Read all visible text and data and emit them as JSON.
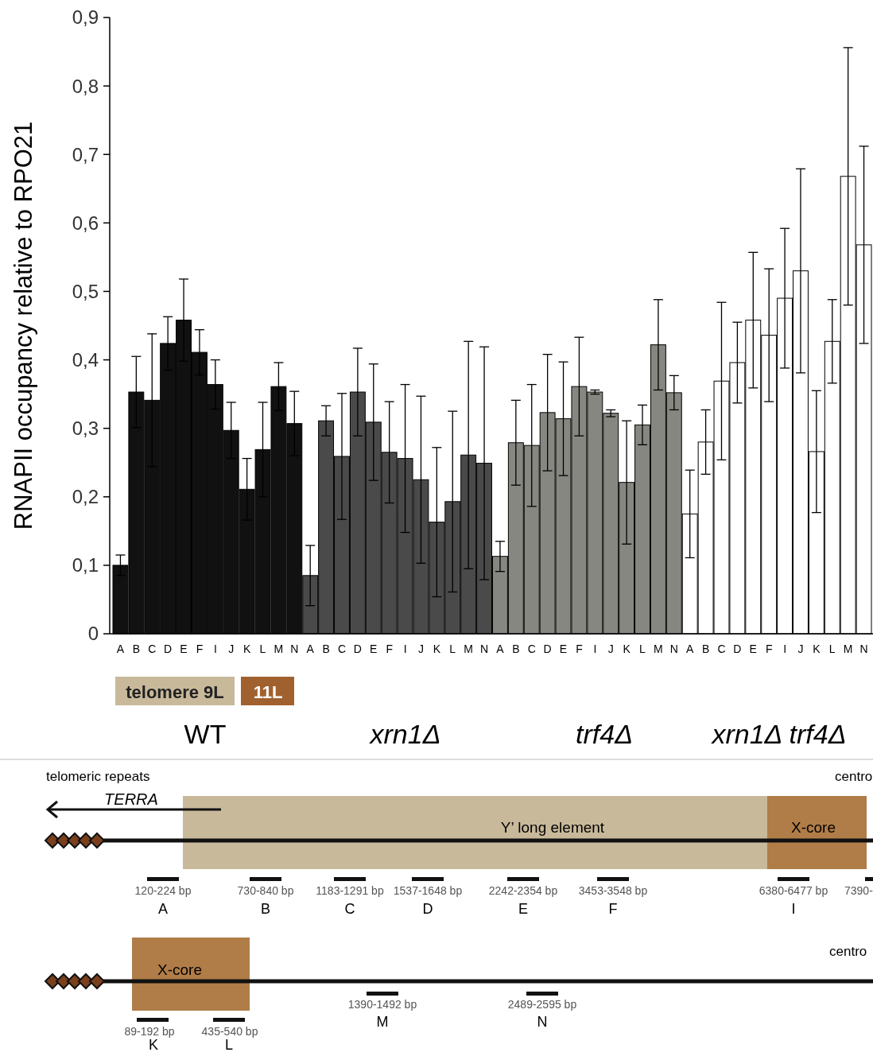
{
  "chart_data": {
    "type": "bar",
    "ylabel": "RNAPII occupancy relative to RPO21",
    "categories": [
      "A",
      "B",
      "C",
      "D",
      "E",
      "F",
      "I",
      "J",
      "K",
      "L",
      "M",
      "N",
      "A",
      "B",
      "C",
      "D",
      "E",
      "F",
      "I",
      "J",
      "K",
      "L",
      "M",
      "N",
      "A",
      "B",
      "C",
      "D",
      "E",
      "F",
      "I",
      "J",
      "K",
      "L",
      "M",
      "N",
      "A",
      "B",
      "C",
      "D",
      "E",
      "F",
      "I",
      "J",
      "K",
      "L",
      "M",
      "N"
    ],
    "values": [
      0.1,
      0.353,
      0.341,
      0.424,
      0.458,
      0.411,
      0.364,
      0.297,
      0.211,
      0.269,
      0.361,
      0.307,
      0.085,
      0.311,
      0.259,
      0.353,
      0.309,
      0.265,
      0.256,
      0.225,
      0.163,
      0.193,
      0.261,
      0.249,
      0.113,
      0.279,
      0.275,
      0.323,
      0.314,
      0.361,
      0.353,
      0.322,
      0.221,
      0.305,
      0.422,
      0.352,
      0.175,
      0.28,
      0.369,
      0.396,
      0.458,
      0.436,
      0.49,
      0.53,
      0.266,
      0.427,
      0.668,
      0.568
    ],
    "errors": [
      0.015,
      0.052,
      0.097,
      0.039,
      0.06,
      0.033,
      0.036,
      0.041,
      0.045,
      0.069,
      0.035,
      0.047,
      0.044,
      0.022,
      0.092,
      0.064,
      0.085,
      0.074,
      0.108,
      0.122,
      0.109,
      0.132,
      0.166,
      0.17,
      0.022,
      0.062,
      0.089,
      0.085,
      0.083,
      0.072,
      0.003,
      0.005,
      0.09,
      0.029,
      0.066,
      0.025,
      0.064,
      0.047,
      0.115,
      0.059,
      0.099,
      0.097,
      0.102,
      0.149,
      0.089,
      0.061,
      0.188,
      0.144
    ],
    "colors": [
      "#111111",
      "#111111",
      "#111111",
      "#111111",
      "#111111",
      "#111111",
      "#111111",
      "#111111",
      "#111111",
      "#111111",
      "#111111",
      "#111111",
      "#4a4a4a",
      "#4a4a4a",
      "#4a4a4a",
      "#4a4a4a",
      "#4a4a4a",
      "#4a4a4a",
      "#4a4a4a",
      "#4a4a4a",
      "#4a4a4a",
      "#4a4a4a",
      "#4a4a4a",
      "#4a4a4a",
      "#878782",
      "#878782",
      "#878782",
      "#878782",
      "#878782",
      "#878782",
      "#878782",
      "#878782",
      "#878782",
      "#878782",
      "#878782",
      "#878782",
      "#ffffff",
      "#ffffff",
      "#ffffff",
      "#ffffff",
      "#ffffff",
      "#ffffff",
      "#ffffff",
      "#ffffff",
      "#ffffff",
      "#ffffff",
      "#ffffff",
      "#ffffff"
    ],
    "ylim": [
      0,
      0.9
    ],
    "yticks": [
      0,
      {
        "value": 0.1,
        "label": "0,1"
      },
      {
        "value": 0.2,
        "label": "0,2"
      },
      {
        "value": 0.3,
        "label": "0,3"
      },
      {
        "value": 0.4,
        "label": "0,4"
      },
      {
        "value": 0.5,
        "label": "0,5"
      },
      {
        "value": 0.6,
        "label": "0,6"
      },
      {
        "value": 0.7,
        "label": "0,7"
      },
      {
        "value": 0.8,
        "label": "0,8"
      },
      {
        "value": 0.9,
        "label": "0,9"
      }
    ],
    "grid": false,
    "annotations": [
      "telomere 9L",
      "11L",
      "WT",
      "xrn1Δ",
      "trf4Δ",
      "xrn1Δ trf4Δ",
      "telomeric repeats",
      "centro",
      "TERRA",
      "Y’ long element",
      "X-core",
      "120-224 bp",
      "730-840 bp",
      "1183-1291 bp",
      "1537-1648 bp",
      "2242-2354 bp",
      "3453-3548 bp",
      "6380-6477 bp",
      "7390-",
      "A",
      "B",
      "C",
      "D",
      "E",
      "F",
      "I",
      "centro",
      "X-core",
      "89-192 bp",
      "435-540 bp",
      "1390-1492 bp",
      "2489-2595 bp",
      "K",
      "L",
      "M",
      "N"
    ]
  }
}
